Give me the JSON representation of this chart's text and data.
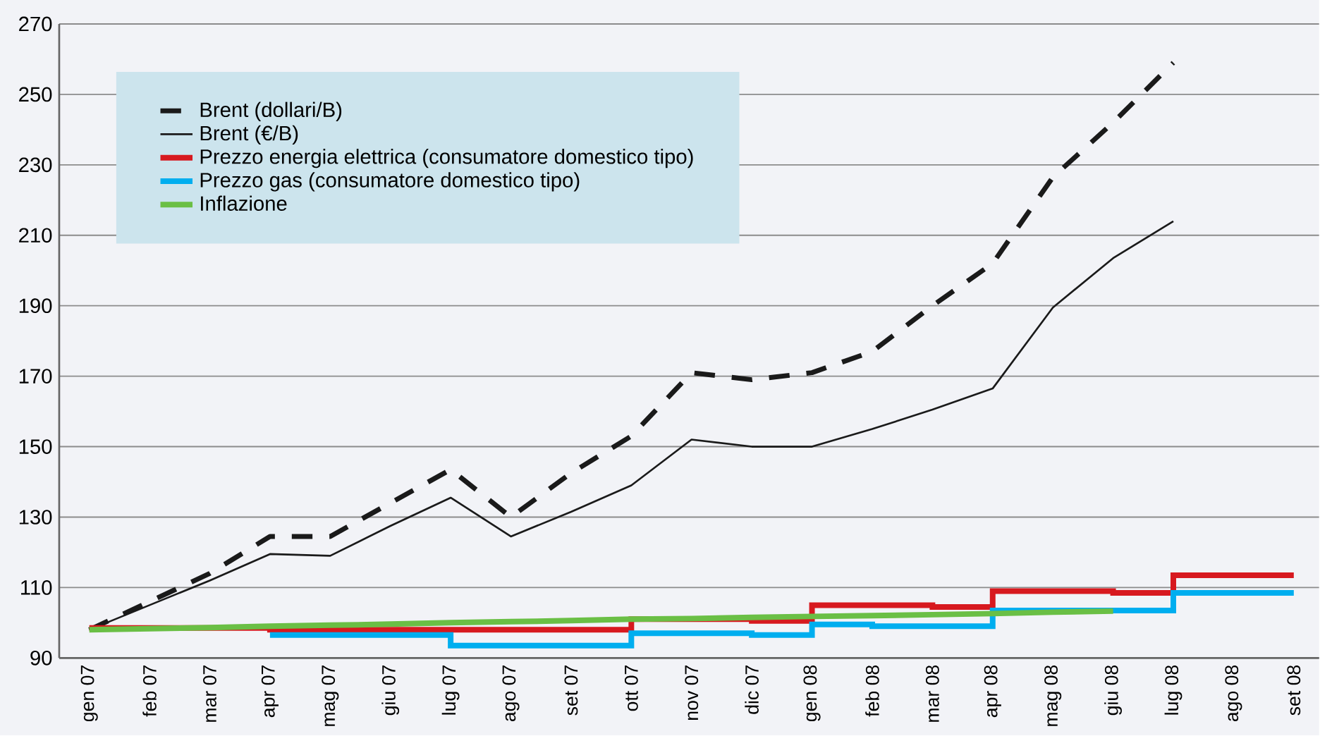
{
  "chart_data": {
    "type": "line",
    "categories": [
      "gen 07",
      "feb 07",
      "mar 07",
      "apr 07",
      "mag 07",
      "giu 07",
      "lug 07",
      "ago 07",
      "set 07",
      "ott 07",
      "nov 07",
      "dic 07",
      "gen 08",
      "feb 08",
      "mar 08",
      "apr 08",
      "mag 08",
      "giu 08",
      "lug 08",
      "ago 08",
      "set 08"
    ],
    "series": [
      {
        "name": "Brent (dollari/B)",
        "color": "#1a1a1a",
        "line_style": "dashed",
        "values": [
          98,
          106,
          114,
          124.5,
          124.5,
          134,
          143.5,
          130,
          142.5,
          153,
          171,
          169,
          171,
          177,
          190,
          202,
          226.5,
          242,
          259,
          null,
          null
        ]
      },
      {
        "name": "Brent (€/B)",
        "color": "#1a1a1a",
        "line_style": "solid",
        "values": [
          98,
          105,
          112,
          119.5,
          119,
          127.5,
          135.5,
          124.5,
          131.5,
          139,
          152,
          150,
          150,
          155,
          160.5,
          166.5,
          189.5,
          203.5,
          214,
          null,
          null
        ]
      },
      {
        "name": "Prezzo energia elettrica  (consumatore domestico tipo)",
        "color": "#d7191f",
        "type": "step",
        "values": [
          98.5,
          98.5,
          98.5,
          98,
          98,
          98,
          98,
          98,
          98,
          101,
          101,
          100.5,
          105,
          105,
          104.5,
          109,
          109,
          108.5,
          113.5,
          113.5,
          113.5
        ]
      },
      {
        "name": "Prezzo gas (consumatore domestico tipo)",
        "color": "#00aeef",
        "type": "step",
        "values": [
          null,
          null,
          null,
          96.5,
          96.5,
          96.5,
          93.5,
          93.5,
          93.5,
          97,
          97,
          96.5,
          99.5,
          99,
          99,
          103.5,
          103.5,
          103.5,
          108.5,
          108.5,
          108.5
        ]
      },
      {
        "name": "Inflazione",
        "color": "#6abf45",
        "type": "line",
        "values": [
          98,
          98.3,
          98.6,
          99,
          99.3,
          99.6,
          100,
          100.3,
          100.6,
          101,
          101.2,
          101.5,
          101.8,
          102,
          102.3,
          102.6,
          103,
          103.3,
          null,
          null,
          null
        ]
      }
    ],
    "ylim": [
      90,
      270
    ],
    "yticks": [
      90,
      110,
      130,
      150,
      170,
      190,
      210,
      230,
      250,
      270
    ],
    "grid": "y",
    "legend": "top left"
  }
}
